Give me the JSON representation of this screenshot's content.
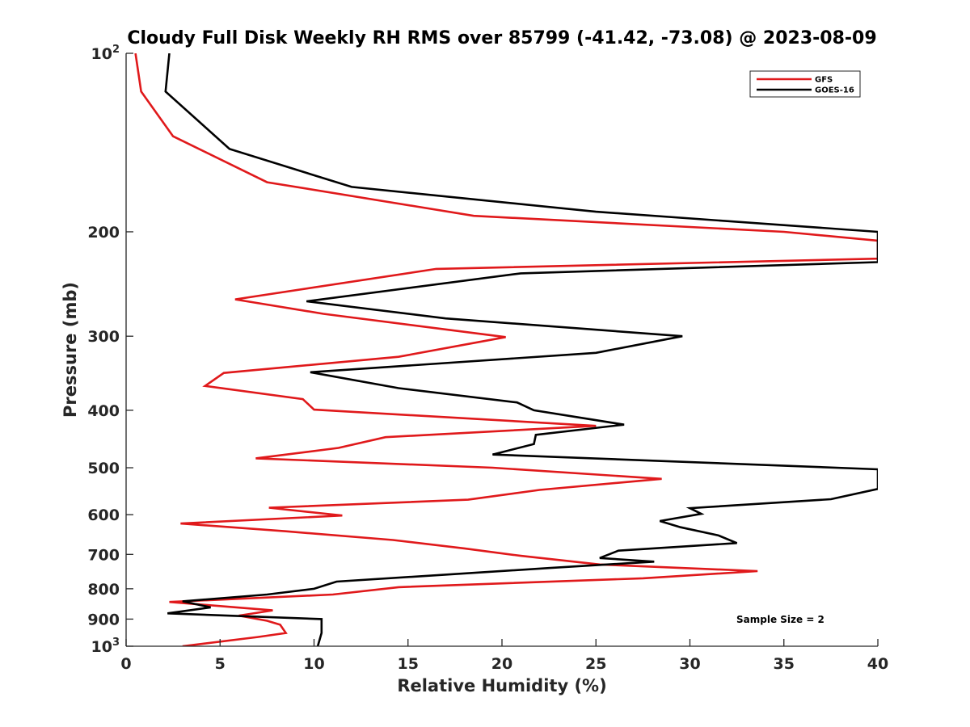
{
  "chart_data": {
    "type": "line",
    "title": "Cloudy Full Disk Weekly RH RMS over 85799 (-41.42, -73.08) @ 2023-08-09",
    "xlabel": "Relative Humidity (%)",
    "ylabel": "Pressure (mb)",
    "xlim": [
      0,
      40
    ],
    "ylim": [
      100,
      1000
    ],
    "yscale": "log",
    "y_reversed": true,
    "grid": false,
    "legend_position": "top-right",
    "x_ticks": [
      0,
      5,
      10,
      15,
      20,
      25,
      30,
      35,
      40
    ],
    "y_ticks": [
      {
        "value": 100,
        "label": "10",
        "sup": "2"
      },
      {
        "value": 200,
        "label": "200",
        "sup": ""
      },
      {
        "value": 300,
        "label": "300",
        "sup": ""
      },
      {
        "value": 400,
        "label": "400",
        "sup": ""
      },
      {
        "value": 500,
        "label": "500",
        "sup": ""
      },
      {
        "value": 600,
        "label": "600",
        "sup": ""
      },
      {
        "value": 700,
        "label": "700",
        "sup": ""
      },
      {
        "value": 800,
        "label": "800",
        "sup": ""
      },
      {
        "value": 900,
        "label": "900",
        "sup": ""
      },
      {
        "value": 1000,
        "label": "10",
        "sup": "3"
      }
    ],
    "annotation": "Sample Size = 2",
    "series": [
      {
        "name": "GFS",
        "color": "#e0191b",
        "points": [
          [
            0.5,
            100
          ],
          [
            0.8,
            116
          ],
          [
            2.5,
            138
          ],
          [
            7.5,
            165
          ],
          [
            18.5,
            188
          ],
          [
            35,
            200
          ],
          [
            40,
            207
          ],
          [
            40,
            222
          ],
          [
            16.5,
            231
          ],
          [
            5.8,
            260
          ],
          [
            10.5,
            275
          ],
          [
            20.2,
            301
          ],
          [
            14.5,
            325
          ],
          [
            5.2,
            346
          ],
          [
            4.2,
            364
          ],
          [
            9.4,
            383
          ],
          [
            10,
            399
          ],
          [
            25,
            425
          ],
          [
            13.8,
            444
          ],
          [
            11.3,
            463
          ],
          [
            6.9,
            482
          ],
          [
            19.5,
            500
          ],
          [
            28.5,
            522
          ],
          [
            22,
            545
          ],
          [
            18.2,
            566
          ],
          [
            7.6,
            584
          ],
          [
            11.5,
            602
          ],
          [
            2.9,
            621
          ],
          [
            8.5,
            640
          ],
          [
            14.2,
            662
          ],
          [
            18,
            684
          ],
          [
            21,
            704
          ],
          [
            25.2,
            728
          ],
          [
            33.6,
            747
          ],
          [
            27.5,
            768
          ],
          [
            14.5,
            795
          ],
          [
            11,
            818
          ],
          [
            2.3,
            842
          ],
          [
            7.8,
            870
          ],
          [
            6,
            888
          ],
          [
            7.5,
            906
          ],
          [
            8.2,
            920
          ],
          [
            8.5,
            950
          ],
          [
            7,
            965
          ],
          [
            3,
            1000
          ]
        ]
      },
      {
        "name": "GOES-16",
        "color": "#000000",
        "points": [
          [
            2.3,
            100
          ],
          [
            2.1,
            116
          ],
          [
            5.5,
            145
          ],
          [
            12,
            168
          ],
          [
            25,
            185
          ],
          [
            40,
            200
          ],
          [
            40,
            225
          ],
          [
            21,
            235
          ],
          [
            9.6,
            262
          ],
          [
            17,
            280
          ],
          [
            29.6,
            300
          ],
          [
            25,
            320
          ],
          [
            9.8,
            345
          ],
          [
            14.5,
            367
          ],
          [
            20.8,
            388
          ],
          [
            21.7,
            400
          ],
          [
            26.5,
            423
          ],
          [
            21.8,
            440
          ],
          [
            21.7,
            456
          ],
          [
            19.5,
            475
          ],
          [
            40,
            503
          ],
          [
            40,
            543
          ],
          [
            37.5,
            565
          ],
          [
            30,
            585
          ],
          [
            30.6,
            598
          ],
          [
            28.4,
            615
          ],
          [
            29.5,
            630
          ],
          [
            31.5,
            650
          ],
          [
            32.5,
            670
          ],
          [
            26.2,
            690
          ],
          [
            25.2,
            710
          ],
          [
            28.1,
            720
          ],
          [
            22.5,
            738
          ],
          [
            11.2,
            778
          ],
          [
            10,
            800
          ],
          [
            7.5,
            818
          ],
          [
            3,
            840
          ],
          [
            4.5,
            860
          ],
          [
            2.2,
            880
          ],
          [
            10.4,
            900
          ],
          [
            10.4,
            950
          ],
          [
            10.2,
            1000
          ]
        ]
      }
    ]
  }
}
